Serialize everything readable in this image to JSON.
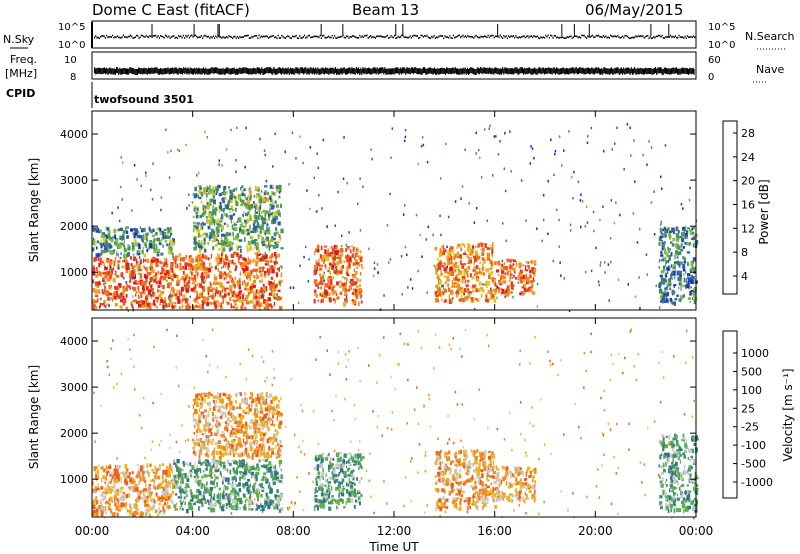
{
  "header": {
    "station": "Dome C East (fitACF)",
    "beam": "Beam 13",
    "date": "06/May/2015"
  },
  "strips": {
    "nsky_label": "N.Sky",
    "nsky_ticks": [
      "10^5",
      "10^0"
    ],
    "nsky_right_ticks": [
      "10^5",
      "10^0"
    ],
    "nsearch_label": "N.Search",
    "freq_label_1": "Freq.",
    "freq_label_2": "[MHz]",
    "freq_ticks": [
      "10",
      "8"
    ],
    "nave_ticks": [
      "60",
      "0"
    ],
    "nave_label": "Nave",
    "cpid_label": "CPID",
    "cpid_value": "twofsound 3501"
  },
  "axes": {
    "ylabel": "Slant Range [km]",
    "xlabel": "Time UT",
    "xticks": [
      "00:00",
      "04:00",
      "08:00",
      "12:00",
      "16:00",
      "20:00",
      "00:00"
    ],
    "yticks": [
      "1000",
      "2000",
      "3000",
      "4000"
    ],
    "x_range_hours": [
      0,
      24
    ],
    "y_range_km": [
      180,
      4500
    ]
  },
  "colorbars": {
    "power": {
      "title": "Power [dB]",
      "ticks": [
        "4",
        "8",
        "12",
        "16",
        "20",
        "24",
        "28"
      ],
      "colors": [
        "#1c2bd6",
        "#2a5aa8",
        "#3f7f7a",
        "#4e9a55",
        "#7fbf3a",
        "#d8cc1f",
        "#f5a623",
        "#f28a1e",
        "#ef6a18",
        "#e8401c",
        "#e01b1b"
      ]
    },
    "velocity": {
      "title": "Velocity [m s⁻¹]",
      "ticks": [
        "1000",
        "500",
        "100",
        "25",
        "-25",
        "-100",
        "-500",
        "-1000"
      ],
      "colors": [
        "#1d3fb8",
        "#2f6f8f",
        "#3f8f6f",
        "#59b04a",
        "#c8c8c8",
        "#f2b21e",
        "#f08a1c",
        "#ec5f1a",
        "#e02a1a"
      ]
    }
  },
  "chart_data": [
    {
      "type": "heatmap",
      "title": "Power",
      "xlabel": "Time UT",
      "ylabel": "Slant Range [km]",
      "xlim": [
        0,
        24
      ],
      "ylim": [
        180,
        4500
      ],
      "colorbar": "Power [dB]",
      "echo_regions": [
        {
          "t0": 0.0,
          "t1": 3.2,
          "r0": 250,
          "r1": 1350,
          "value_db": 25
        },
        {
          "t0": 0.0,
          "t1": 3.2,
          "r0": 1400,
          "r1": 2000,
          "value_db": 9
        },
        {
          "t0": 3.2,
          "t1": 7.5,
          "r0": 250,
          "r1": 1450,
          "value_db": 24
        },
        {
          "t0": 4.0,
          "t1": 7.5,
          "r0": 1500,
          "r1": 2900,
          "value_db": 11
        },
        {
          "t0": 8.8,
          "t1": 10.7,
          "r0": 350,
          "r1": 1600,
          "value_db": 24
        },
        {
          "t0": 13.6,
          "t1": 16.0,
          "r0": 400,
          "r1": 1650,
          "value_db": 22
        },
        {
          "t0": 16.0,
          "t1": 17.6,
          "r0": 550,
          "r1": 1300,
          "value_db": 24
        },
        {
          "t0": 22.5,
          "t1": 24.0,
          "r0": 350,
          "r1": 2000,
          "value_db": 8
        }
      ]
    },
    {
      "type": "heatmap",
      "title": "Velocity",
      "xlabel": "Time UT",
      "ylabel": "Slant Range [km]",
      "xlim": [
        0,
        24
      ],
      "ylim": [
        180,
        4500
      ],
      "colorbar": "Velocity [m s⁻¹]",
      "echo_regions": [
        {
          "t0": 0.0,
          "t1": 3.2,
          "r0": 250,
          "r1": 1350,
          "value_ms": -80
        },
        {
          "t0": 3.2,
          "t1": 7.5,
          "r0": 350,
          "r1": 1450,
          "value_ms": 120
        },
        {
          "t0": 4.0,
          "t1": 7.5,
          "r0": 1500,
          "r1": 2900,
          "value_ms": -150
        },
        {
          "t0": 8.8,
          "t1": 10.7,
          "r0": 400,
          "r1": 1600,
          "value_ms": 80
        },
        {
          "t0": 13.6,
          "t1": 16.0,
          "r0": 400,
          "r1": 1650,
          "value_ms": -150
        },
        {
          "t0": 16.0,
          "t1": 17.6,
          "r0": 550,
          "r1": 1300,
          "value_ms": -120
        },
        {
          "t0": 22.5,
          "t1": 24.0,
          "r0": 350,
          "r1": 2000,
          "value_ms": 60
        }
      ]
    }
  ]
}
